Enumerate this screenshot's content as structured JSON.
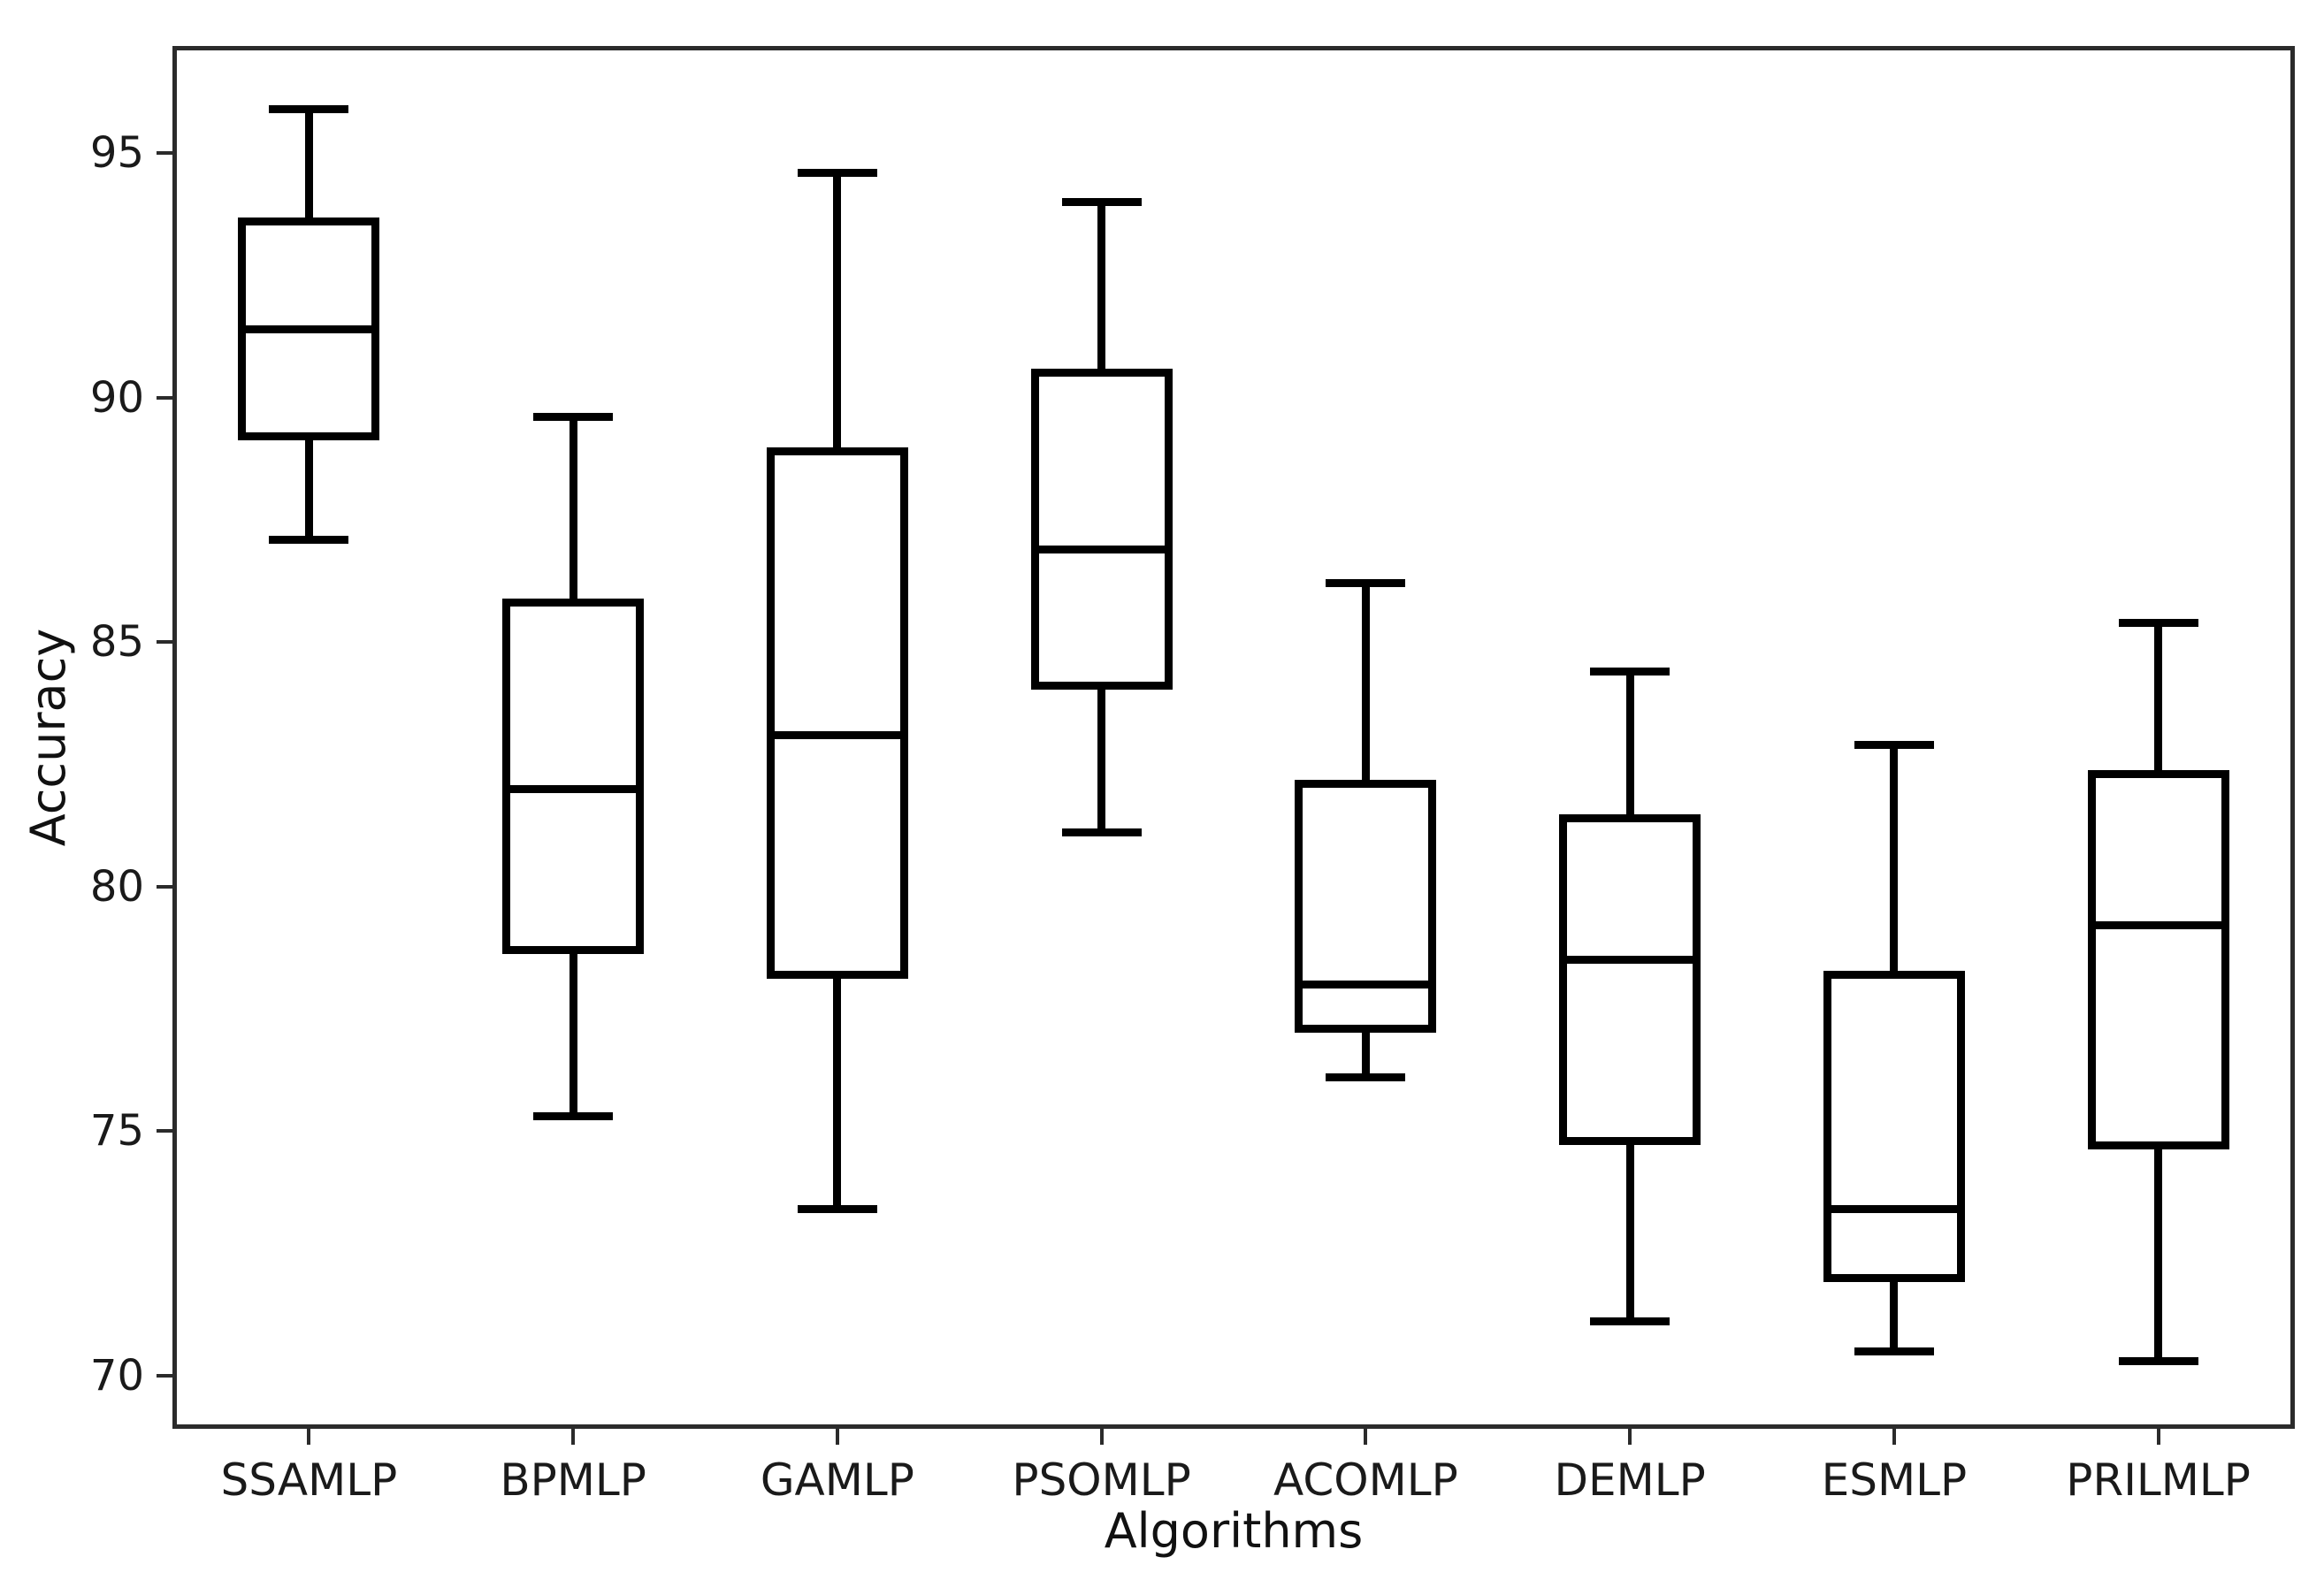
{
  "figure": {
    "background": "#ffffff",
    "box_line_color": "#000000",
    "spine_color": "#2b2b2b",
    "text_color": "#1a1a1a"
  },
  "chart_data": {
    "type": "boxplot",
    "title": "",
    "xlabel": "Algorithms",
    "ylabel": "Accuracy",
    "categories": [
      "SSAMLP",
      "BPMLP",
      "GAMLP",
      "PSOMLP",
      "ACOMLP",
      "DEMLP",
      "ESMLP",
      "PRILMLP"
    ],
    "y_ticks": [
      70,
      75,
      80,
      85,
      90,
      95
    ],
    "ylim": [
      69.0,
      97.1
    ],
    "grid": false,
    "legend": null,
    "series": [
      {
        "name": "SSAMLP",
        "whisker_low": 87.1,
        "q1": 89.2,
        "median": 91.4,
        "q3": 93.6,
        "whisker_high": 95.9
      },
      {
        "name": "BPMLP",
        "whisker_low": 75.3,
        "q1": 78.7,
        "median": 82.0,
        "q3": 85.8,
        "whisker_high": 89.6
      },
      {
        "name": "GAMLP",
        "whisker_low": 73.4,
        "q1": 78.2,
        "median": 83.1,
        "q3": 88.9,
        "whisker_high": 94.6
      },
      {
        "name": "PSOMLP",
        "whisker_low": 81.1,
        "q1": 84.1,
        "median": 86.9,
        "q3": 90.5,
        "whisker_high": 94.0
      },
      {
        "name": "ACOMLP",
        "whisker_low": 76.1,
        "q1": 77.1,
        "median": 78.0,
        "q3": 82.1,
        "whisker_high": 86.2
      },
      {
        "name": "DEMLP",
        "whisker_low": 71.1,
        "q1": 74.8,
        "median": 78.5,
        "q3": 81.4,
        "whisker_high": 84.4
      },
      {
        "name": "ESMLP",
        "whisker_low": 70.5,
        "q1": 72.0,
        "median": 73.4,
        "q3": 78.2,
        "whisker_high": 82.9
      },
      {
        "name": "PRILMLP",
        "whisker_low": 70.3,
        "q1": 74.7,
        "median": 79.2,
        "q3": 82.3,
        "whisker_high": 85.4
      }
    ]
  }
}
